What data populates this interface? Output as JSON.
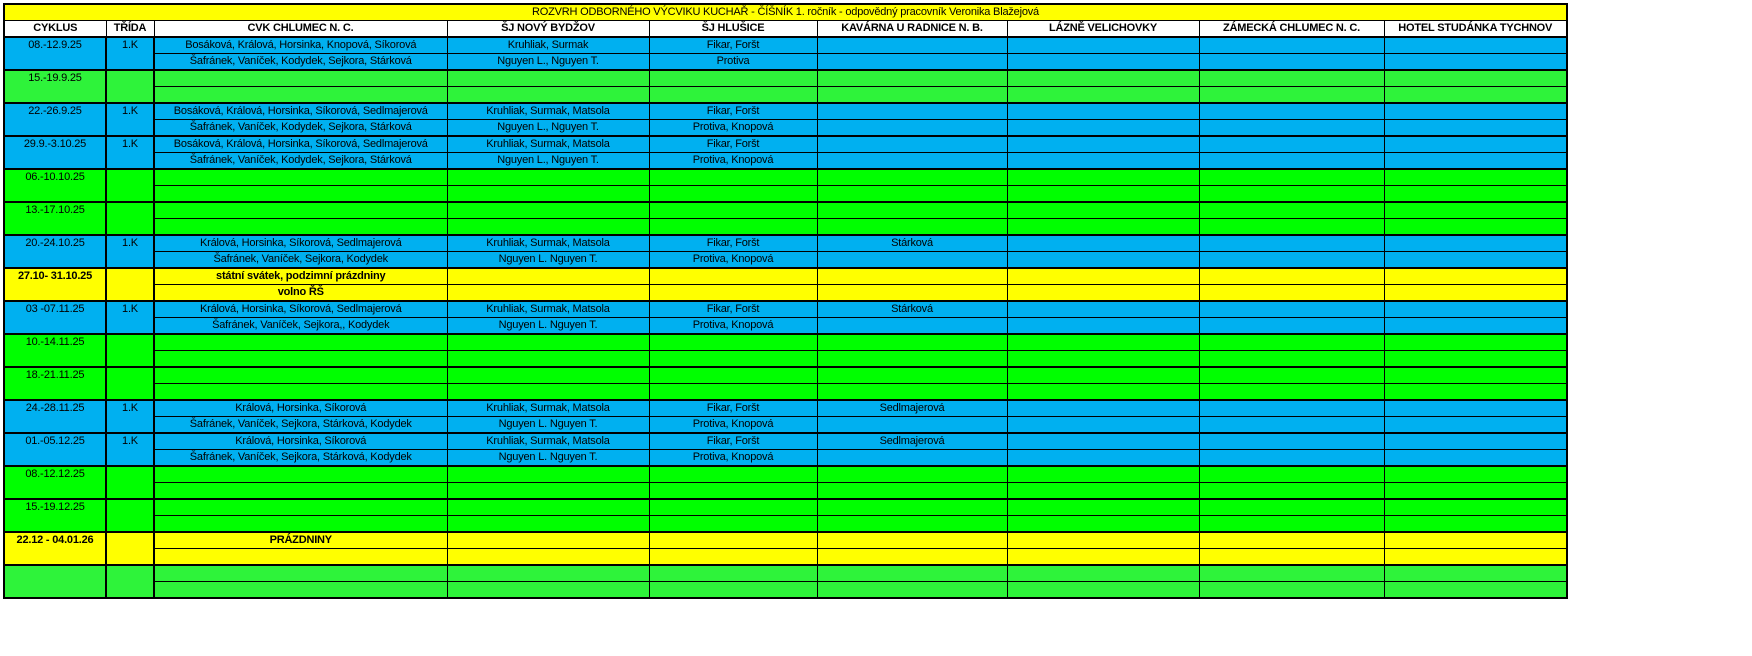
{
  "title": "ROZVRH ODBORNÉHO VÝCVIKU KUCHAŘ - ČÍŠNÍK  1. ročník - odpovědný pracovník Veronika Blažejová",
  "headers": [
    "CYKLUS",
    "TŘÍDA",
    "CVK CHLUMEC N. C.",
    "ŠJ NOVÝ BYDŽOV",
    "ŠJ HLUŠICE",
    "KAVÁRNA U RADNICE N. B.",
    "LÁZNĚ VELICHOVKY",
    "ZÁMECKÁ CHLUMEC N. C.",
    "HOTEL STUDÁNKA TYCHNOV"
  ],
  "colors": {
    "blue": "#00b0f0",
    "green_light": "#2ef33a",
    "green": "#00ff00",
    "yellow": "#ffff00"
  },
  "blocks": [
    {
      "cyklus": "08.-12.9.25",
      "trida": "1.K",
      "color": "blue",
      "rows": [
        [
          "Bosáková, Králová, Horsinka, Knopová, Síkorová",
          "Kruhliak, Surmak",
          "Fikar, Foršt",
          "",
          "",
          "",
          ""
        ],
        [
          "Šafránek, Vaníček, Kodydek, Sejkora, Stárková",
          "Nguyen L., Nguyen T.",
          "Protiva",
          "",
          "",
          "",
          ""
        ]
      ]
    },
    {
      "cyklus": "15.-19.9.25",
      "trida": "",
      "color": "green_light",
      "rows": [
        [
          "",
          "",
          "",
          "",
          "",
          "",
          ""
        ],
        [
          "",
          "",
          "",
          "",
          "",
          "",
          ""
        ]
      ]
    },
    {
      "cyklus": "22.-26.9.25",
      "trida": "1.K",
      "color": "blue",
      "rows": [
        [
          "Bosáková, Králová, Horsinka, Síkorová, Sedlmajerová",
          "Kruhliak, Surmak, Matsola",
          "Fikar, Foršt",
          "",
          "",
          "",
          ""
        ],
        [
          "Šafránek, Vaníček, Kodydek, Sejkora, Stárková",
          "Nguyen L., Nguyen T.",
          "Protiva, Knopová",
          "",
          "",
          "",
          ""
        ]
      ]
    },
    {
      "cyklus": "29.9.-3.10.25",
      "trida": "1.K",
      "color": "blue",
      "rows": [
        [
          "Bosáková, Králová, Horsinka, Síkorová, Sedlmajerová",
          "Kruhliak, Surmak, Matsola",
          "Fikar, Foršt",
          "",
          "",
          "",
          ""
        ],
        [
          "Šafránek, Vaníček, Kodydek, Sejkora, Stárková",
          "Nguyen L., Nguyen T.",
          "Protiva, Knopová",
          "",
          "",
          "",
          ""
        ]
      ]
    },
    {
      "cyklus": "06.-10.10.25",
      "trida": "",
      "color": "green",
      "rows": [
        [
          "",
          "",
          "",
          "",
          "",
          "",
          ""
        ],
        [
          "",
          "",
          "",
          "",
          "",
          "",
          ""
        ]
      ]
    },
    {
      "cyklus": "13.-17.10.25",
      "trida": "",
      "color": "green",
      "rows": [
        [
          "",
          "",
          "",
          "",
          "",
          "",
          ""
        ],
        [
          "",
          "",
          "",
          "",
          "",
          "",
          ""
        ]
      ]
    },
    {
      "cyklus": "20.-24.10.25",
      "trida": "1.K",
      "color": "blue",
      "rows": [
        [
          "Králová, Horsinka, Síkorová, Sedlmajerová",
          "Kruhliak, Surmak, Matsola",
          "Fikar, Foršt",
          "Stárková",
          "",
          "",
          ""
        ],
        [
          "Šafránek, Vaníček, Sejkora, Kodydek",
          "Nguyen L. Nguyen T.",
          "Protiva, Knopová",
          "",
          "",
          "",
          ""
        ]
      ]
    },
    {
      "cyklus": "27.10- 31.10.25",
      "trida": "",
      "color": "yellow",
      "bold": true,
      "rows": [
        [
          "státní svátek, podzimní prázdniny",
          "",
          "",
          "",
          "",
          "",
          ""
        ],
        [
          "volno ŘŠ",
          "",
          "",
          "",
          "",
          "",
          ""
        ]
      ]
    },
    {
      "cyklus": "03 -07.11.25",
      "trida": "1.K",
      "color": "blue",
      "rows": [
        [
          "Králová, Horsinka, Síkorová, Sedlmajerová",
          "Kruhliak, Surmak, Matsola",
          "Fikar, Foršt",
          "Stárková",
          "",
          "",
          ""
        ],
        [
          "Šafránek, Vaníček, Sejkora,, Kodydek",
          "Nguyen L. Nguyen T.",
          "Protiva, Knopová",
          "",
          "",
          "",
          ""
        ]
      ]
    },
    {
      "cyklus": "10.-14.11.25",
      "trida": "",
      "color": "green",
      "rows": [
        [
          "",
          "",
          "",
          "",
          "",
          "",
          ""
        ],
        [
          "",
          "",
          "",
          "",
          "",
          "",
          ""
        ]
      ]
    },
    {
      "cyklus": "18.-21.11.25",
      "trida": "",
      "color": "green",
      "rows": [
        [
          "",
          "",
          "",
          "",
          "",
          "",
          ""
        ],
        [
          "",
          "",
          "",
          "",
          "",
          "",
          ""
        ]
      ]
    },
    {
      "cyklus": "24.-28.11.25",
      "trida": "1.K",
      "color": "blue",
      "rows": [
        [
          "Králová, Horsinka, Síkorová",
          "Kruhliak, Surmak, Matsola",
          "Fikar, Foršt",
          "Sedlmajerová",
          "",
          "",
          ""
        ],
        [
          "Šafránek, Vaníček, Sejkora, Stárková, Kodydek",
          "Nguyen L. Nguyen T.",
          "Protiva, Knopová",
          "",
          "",
          "",
          ""
        ]
      ]
    },
    {
      "cyklus": "01.-05.12.25",
      "trida": "1.K",
      "color": "blue",
      "rows": [
        [
          "Králová, Horsinka, Síkorová",
          "Kruhliak, Surmak, Matsola",
          "Fikar, Foršt",
          "Sedlmajerová",
          "",
          "",
          ""
        ],
        [
          "Šafránek, Vaníček, Sejkora, Stárková, Kodydek",
          "Nguyen L. Nguyen T.",
          "Protiva, Knopová",
          "",
          "",
          "",
          ""
        ]
      ]
    },
    {
      "cyklus": "08.-12.12.25",
      "trida": "",
      "color": "green",
      "rows": [
        [
          "",
          "",
          "",
          "",
          "",
          "",
          ""
        ],
        [
          "",
          "",
          "",
          "",
          "",
          "",
          ""
        ]
      ]
    },
    {
      "cyklus": "15.-19.12.25",
      "trida": "",
      "color": "green",
      "rows": [
        [
          "",
          "",
          "",
          "",
          "",
          "",
          ""
        ],
        [
          "",
          "",
          "",
          "",
          "",
          "",
          ""
        ]
      ]
    },
    {
      "cyklus": "22.12 - 04.01.26",
      "trida": "",
      "color": "yellow",
      "bold": true,
      "rows": [
        [
          "PRÁZDNINY",
          "",
          "",
          "",
          "",
          "",
          ""
        ],
        [
          "",
          "",
          "",
          "",
          "",
          "",
          ""
        ]
      ]
    },
    {
      "cyklus": "",
      "trida": "",
      "color": "green_light",
      "rows": [
        [
          "",
          "",
          "",
          "",
          "",
          "",
          ""
        ],
        [
          "",
          "",
          "",
          "",
          "",
          "",
          ""
        ]
      ]
    }
  ]
}
